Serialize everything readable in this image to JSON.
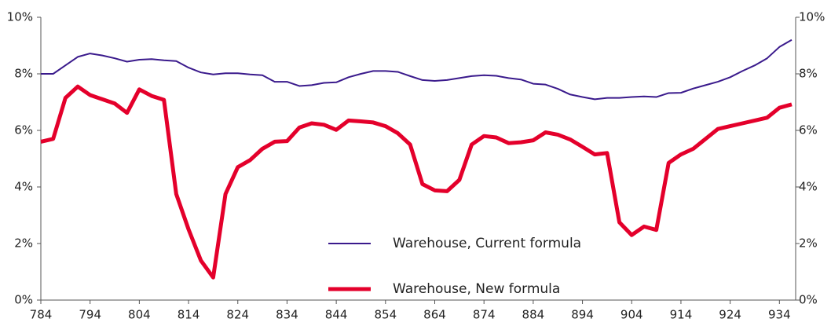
{
  "chart_data": {
    "type": "line",
    "x": [
      784,
      786.5,
      789,
      791.5,
      794,
      796.5,
      799,
      801.5,
      804,
      806.5,
      809,
      811.5,
      814,
      816.5,
      819,
      821.5,
      824,
      826.5,
      829,
      831.5,
      834,
      836.5,
      839,
      841.5,
      844,
      846.5,
      849,
      851.5,
      854,
      856.5,
      859,
      861.5,
      864,
      866.5,
      869,
      871.5,
      874,
      876.5,
      879,
      881.5,
      884,
      886.5,
      889,
      891.5,
      894,
      896.5,
      899,
      901.5,
      904,
      906.5,
      909,
      911.5,
      914,
      916.5,
      919,
      921.5,
      924,
      926.5,
      929,
      931.5,
      934,
      936.5
    ],
    "series": [
      {
        "name": "Warehouse, Current formula",
        "color": "#3a1a8c",
        "width": 2,
        "values": [
          8.0,
          8.0,
          8.3,
          8.6,
          8.72,
          8.65,
          8.55,
          8.43,
          8.5,
          8.52,
          8.48,
          8.45,
          8.22,
          8.05,
          7.98,
          8.02,
          8.02,
          7.98,
          7.95,
          7.72,
          7.72,
          7.57,
          7.6,
          7.68,
          7.7,
          7.88,
          8.0,
          8.1,
          8.1,
          8.07,
          7.92,
          7.78,
          7.75,
          7.78,
          7.85,
          7.92,
          7.95,
          7.93,
          7.85,
          7.8,
          7.65,
          7.62,
          7.47,
          7.27,
          7.18,
          7.1,
          7.15,
          7.15,
          7.18,
          7.2,
          7.18,
          7.32,
          7.33,
          7.48,
          7.6,
          7.72,
          7.88,
          8.1,
          8.3,
          8.55,
          8.95,
          9.2
        ]
      },
      {
        "name": "Warehouse, New formula",
        "color": "#e4002b",
        "width": 5,
        "values": [
          5.6,
          5.7,
          7.15,
          7.55,
          7.25,
          7.1,
          6.95,
          6.62,
          7.45,
          7.22,
          7.08,
          3.75,
          2.5,
          1.4,
          0.8,
          3.75,
          4.7,
          4.95,
          5.35,
          5.6,
          5.62,
          6.1,
          6.25,
          6.2,
          6.02,
          6.35,
          6.32,
          6.28,
          6.15,
          5.9,
          5.5,
          4.1,
          3.88,
          3.85,
          4.25,
          5.5,
          5.8,
          5.75,
          5.55,
          5.58,
          5.65,
          5.93,
          5.85,
          5.68,
          5.42,
          5.15,
          5.2,
          2.75,
          2.3,
          2.6,
          2.48,
          4.85,
          5.15,
          5.35,
          5.7,
          6.05,
          6.15,
          6.25,
          6.35,
          6.45,
          6.8,
          6.92
        ]
      }
    ],
    "xlim": [
      784,
      937.3
    ],
    "xticks": [
      784,
      794,
      804,
      814,
      824,
      834,
      844,
      854,
      864,
      874,
      884,
      894,
      904,
      914,
      924,
      934
    ],
    "ylim": [
      0,
      10
    ],
    "yticks": [
      {
        "value": 0,
        "label": "0%"
      },
      {
        "value": 2,
        "label": "2%"
      },
      {
        "value": 4,
        "label": "4%"
      },
      {
        "value": 6,
        "label": "6%"
      },
      {
        "value": 8,
        "label": "8%"
      },
      {
        "value": 10,
        "label": "10%"
      }
    ],
    "y2lim": [
      0,
      10
    ],
    "y2ticks": [
      {
        "value": 0,
        "label": "0%"
      },
      {
        "value": 2,
        "label": "2%"
      },
      {
        "value": 4,
        "label": "4%"
      },
      {
        "value": 6,
        "label": "6%"
      },
      {
        "value": 8,
        "label": "8%"
      },
      {
        "value": 10,
        "label": "10%"
      }
    ],
    "legend": "bottom-center"
  }
}
